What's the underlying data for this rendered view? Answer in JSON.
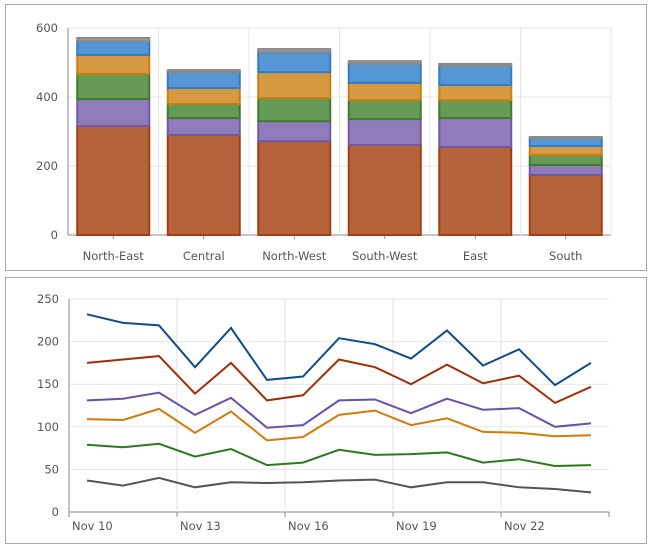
{
  "chart_data": [
    {
      "type": "bar",
      "stacked": true,
      "categories": [
        "North-East",
        "Central",
        "North-West",
        "South-West",
        "East",
        "South"
      ],
      "ylim": [
        0,
        600
      ],
      "yticks": [
        "0",
        "200",
        "400",
        "600"
      ],
      "grid": true,
      "series": [
        {
          "color": "#b5633b",
          "stroke": "#a63c14",
          "values": [
            316,
            290,
            272,
            261,
            255,
            174
          ]
        },
        {
          "color": "#8e7dba",
          "stroke": "#7159a6",
          "values": [
            78,
            49,
            58,
            75,
            84,
            29
          ]
        },
        {
          "color": "#669a57",
          "stroke": "#3f7d2b",
          "values": [
            73,
            41,
            67,
            55,
            52,
            29
          ]
        },
        {
          "color": "#d69a43",
          "stroke": "#d07d10",
          "values": [
            55,
            46,
            75,
            50,
            44,
            26
          ]
        },
        {
          "color": "#5596d4",
          "stroke": "#2f7ccc",
          "values": [
            40,
            46,
            58,
            55,
            55,
            23
          ]
        },
        {
          "color": "#9a9a9a",
          "stroke": "#8a8a8a",
          "values": [
            9,
            6,
            9,
            8,
            6,
            3
          ]
        }
      ]
    },
    {
      "type": "line",
      "x": [
        "Nov 10",
        "Nov 11",
        "Nov 12",
        "Nov 13",
        "Nov 14",
        "Nov 15",
        "Nov 16",
        "Nov 17",
        "Nov 18",
        "Nov 19",
        "Nov 20",
        "Nov 21",
        "Nov 22",
        "Nov 23",
        "Nov 24"
      ],
      "xticks": [
        "Nov 10",
        "Nov 13",
        "Nov 16",
        "Nov 19",
        "Nov 22"
      ],
      "ylim": [
        0,
        250
      ],
      "yticks": [
        "0",
        "50",
        "100",
        "150",
        "200",
        "250"
      ],
      "grid": true,
      "series": [
        {
          "color": "#0f4d8a",
          "values": [
            232,
            222,
            219,
            170,
            216,
            155,
            159,
            204,
            197,
            180,
            213,
            172,
            191,
            149,
            175
          ]
        },
        {
          "color": "#a32d05",
          "values": [
            175,
            179,
            183,
            139,
            175,
            131,
            137,
            179,
            170,
            150,
            173,
            151,
            160,
            128,
            147
          ]
        },
        {
          "color": "#6a50a8",
          "values": [
            131,
            133,
            140,
            114,
            134,
            99,
            102,
            131,
            132,
            116,
            133,
            120,
            122,
            100,
            104
          ]
        },
        {
          "color": "#d27c07",
          "values": [
            109,
            108,
            121,
            93,
            118,
            84,
            88,
            114,
            119,
            102,
            110,
            94,
            93,
            89,
            90
          ]
        },
        {
          "color": "#2b7a1b",
          "values": [
            79,
            76,
            80,
            65,
            74,
            55,
            58,
            73,
            67,
            68,
            70,
            58,
            62,
            54,
            55
          ]
        },
        {
          "color": "#555555",
          "values": [
            37,
            31,
            40,
            29,
            35,
            34,
            35,
            37,
            38,
            29,
            35,
            35,
            29,
            27,
            23
          ]
        }
      ]
    }
  ]
}
